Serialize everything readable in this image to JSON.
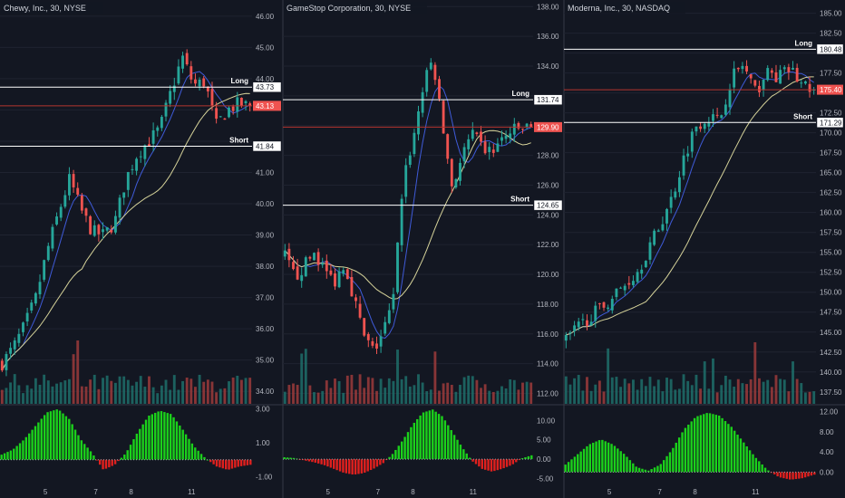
{
  "colors": {
    "background": "#131722",
    "grid": "#1f2330",
    "up": "#26a69a",
    "down": "#ef5350",
    "vol_up": "#1f6f6a",
    "vol_down": "#9c3b3b",
    "ma_fast": "#3f5bd9",
    "ma_slow": "#d6d39a",
    "hist_pos": "#1bd11b",
    "hist_neg": "#e0201e",
    "level_line": "#ffffff",
    "price_line": "#b5352f",
    "divider": "#363a45"
  },
  "chart_data": [
    {
      "type": "candlestick",
      "title": "Chewy, Inc., 30, NYSE",
      "ylim": [
        33.6,
        46.4
      ],
      "y_ticks": [
        "34.00",
        "35.00",
        "36.00",
        "37.00",
        "38.00",
        "39.00",
        "40.00",
        "41.00",
        "42.00",
        "43.00",
        "44.00",
        "45.00",
        "46.00"
      ],
      "x_ticks": [
        "5",
        "7",
        "8",
        "11"
      ],
      "price_path": [
        34.9,
        35.4,
        36.1,
        37.0,
        38.5,
        39.7,
        40.8,
        39.8,
        39.1,
        39.0,
        39.4,
        40.8,
        41.6,
        42.0,
        42.4,
        43.6,
        44.7,
        43.8,
        43.9,
        42.5,
        43.0,
        43.2,
        43.1
      ],
      "levels": [
        {
          "label": "Long",
          "value": 43.73,
          "value_text": "43.73"
        },
        {
          "label": "Short",
          "value": 41.84,
          "value_text": "41.84"
        }
      ],
      "last_price": {
        "value": 43.13,
        "value_text": "43.13"
      },
      "hist_ylim": [
        -1.3,
        3.2
      ],
      "hist_ticks": [
        "3.00",
        "1.00",
        "-1.00"
      ],
      "hist_path": [
        0.3,
        0.6,
        1.2,
        2.0,
        2.8,
        3.0,
        2.4,
        1.2,
        0.4,
        -0.6,
        -0.3,
        0.4,
        1.6,
        2.6,
        2.9,
        2.7,
        1.8,
        0.8,
        0.1,
        -0.4,
        -0.6,
        -0.4,
        -0.3
      ]
    },
    {
      "type": "candlestick",
      "title": "GameStop Corporation, 30, NYSE",
      "ylim": [
        111.3,
        138.2
      ],
      "y_ticks": [
        "112.00",
        "114.00",
        "116.00",
        "118.00",
        "120.00",
        "122.00",
        "124.00",
        "126.00",
        "128.00",
        "130.00",
        "132.00",
        "134.00",
        "136.00",
        "138.00"
      ],
      "x_ticks": [
        "5",
        "7",
        "8",
        "11"
      ],
      "price_path": [
        121.2,
        119.8,
        120.6,
        121.5,
        120.3,
        119.5,
        120.8,
        118.5,
        115.8,
        114.8,
        116.2,
        118.2,
        126.5,
        129.0,
        132.5,
        134.5,
        130.0,
        125.8,
        128.0,
        129.4,
        128.5,
        128.2,
        129.0,
        129.6,
        129.8,
        129.9
      ],
      "levels": [
        {
          "label": "Long",
          "value": 131.74,
          "value_text": "131.74"
        },
        {
          "label": "Short",
          "value": 124.65,
          "value_text": "124.65"
        }
      ],
      "last_price": {
        "value": 129.9,
        "value_text": "129.90"
      },
      "hist_ylim": [
        -5.8,
        13.8
      ],
      "hist_ticks": [
        "10.00",
        "5.00",
        "0.00",
        "-5.00"
      ],
      "hist_path": [
        0.5,
        0.3,
        -0.3,
        -0.8,
        -1.5,
        -2.5,
        -3.5,
        -4.0,
        -3.6,
        -2.5,
        -1.0,
        1.5,
        5.0,
        9.0,
        12.0,
        12.8,
        11.0,
        7.0,
        3.0,
        -0.5,
        -2.5,
        -3.2,
        -2.5,
        -1.5,
        0.2,
        1.0
      ]
    },
    {
      "type": "candlestick",
      "title": "Moderna, Inc., 30, NASDAQ",
      "ylim": [
        136.0,
        186.2
      ],
      "y_ticks": [
        "137.50",
        "140.00",
        "142.50",
        "145.00",
        "147.50",
        "150.00",
        "152.50",
        "155.00",
        "157.50",
        "160.00",
        "162.50",
        "165.00",
        "167.50",
        "170.00",
        "172.50",
        "175.00",
        "177.50",
        "180.00",
        "182.50",
        "185.00"
      ],
      "x_ticks": [
        "5",
        "7",
        "8",
        "11"
      ],
      "price_path": [
        144.0,
        145.5,
        147.0,
        148.0,
        149.5,
        151.0,
        152.5,
        155.5,
        158.5,
        162.0,
        167.0,
        171.0,
        172.0,
        171.5,
        177.0,
        178.5,
        175.0,
        177.5,
        177.0,
        178.0,
        176.0,
        175.4
      ],
      "levels": [
        {
          "label": "Long",
          "value": 180.48,
          "value_text": "180.48"
        },
        {
          "label": "Short",
          "value": 171.29,
          "value_text": "171.29"
        }
      ],
      "last_price": {
        "value": 175.4,
        "value_text": "175.40"
      },
      "hist_ylim": [
        -1.9,
        13.2
      ],
      "hist_ticks": [
        "12.00",
        "8.00",
        "4.00",
        "0.00"
      ],
      "hist_path": [
        1.5,
        3.5,
        5.5,
        6.5,
        5.5,
        3.5,
        1.0,
        0.3,
        1.5,
        4.5,
        8.5,
        11.0,
        11.8,
        11.2,
        9.0,
        6.0,
        3.0,
        0.5,
        -1.0,
        -1.5,
        -1.2,
        -0.5
      ]
    }
  ]
}
